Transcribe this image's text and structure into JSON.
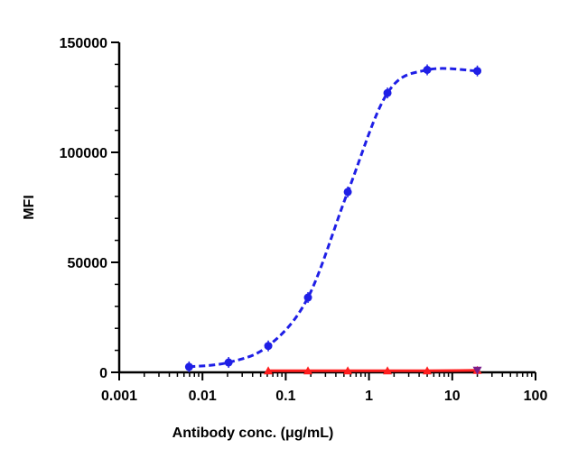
{
  "chart_data": {
    "type": "scatter",
    "xlabel": "Antibody conc. (μg/mL)",
    "ylabel": "MFI",
    "x_scale": "log",
    "xlim": [
      0.001,
      100
    ],
    "ylim": [
      0,
      150000
    ],
    "x_ticks": [
      {
        "value": 0.001,
        "label": "0.001"
      },
      {
        "value": 0.01,
        "label": "0.01"
      },
      {
        "value": 0.1,
        "label": "0.1"
      },
      {
        "value": 1,
        "label": "1"
      },
      {
        "value": 10,
        "label": "10"
      },
      {
        "value": 100,
        "label": "100"
      }
    ],
    "y_ticks": [
      {
        "value": 0,
        "label": "0"
      },
      {
        "value": 50000,
        "label": "50000"
      },
      {
        "value": 100000,
        "label": "100000"
      },
      {
        "value": 150000,
        "label": "150000"
      }
    ],
    "grid": false,
    "series": [
      {
        "color": "#1f1fe6",
        "marker": "circle",
        "line_style": "dashed",
        "fit": "sigmoidal",
        "x": [
          0.0069,
          0.0206,
          0.0617,
          0.185,
          0.556,
          1.667,
          5.0,
          20.0
        ],
        "y": [
          2500,
          4500,
          12000,
          34000,
          82000,
          127000,
          137500,
          137000
        ]
      },
      {
        "color": "#ff1f1f",
        "marker": "triangle",
        "line_style": "solid",
        "x": [
          0.0617,
          0.185,
          0.556,
          1.667,
          5.0,
          20.0
        ],
        "y": [
          700,
          700,
          700,
          700,
          700,
          900
        ]
      }
    ]
  }
}
